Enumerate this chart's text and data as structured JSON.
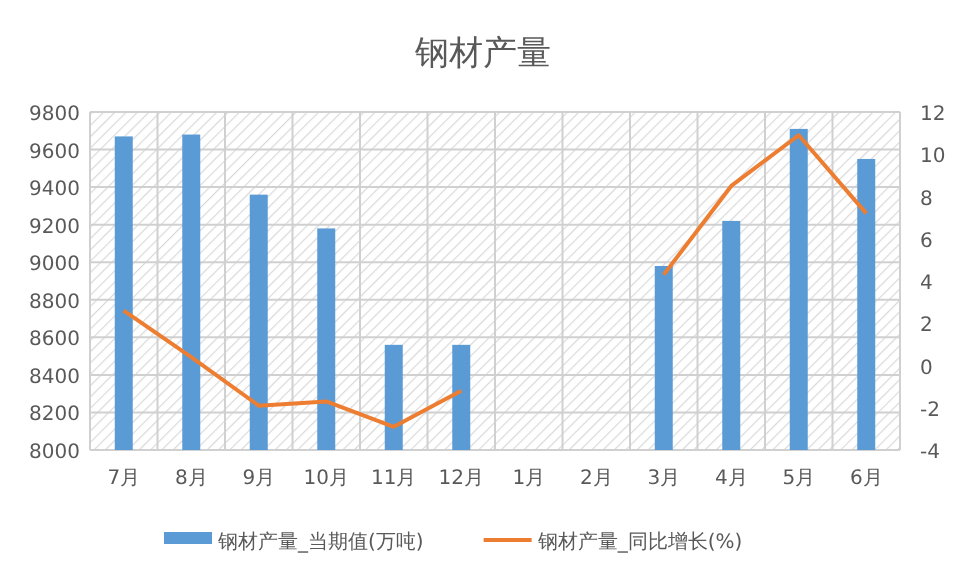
{
  "chart_data": {
    "type": "bar",
    "title": "钢材产量",
    "categories": [
      "7月",
      "8月",
      "9月",
      "10月",
      "11月",
      "12月",
      "1月",
      "2月",
      "3月",
      "4月",
      "5月",
      "6月"
    ],
    "series": [
      {
        "name": "钢材产量_当期值(万吨)",
        "color": "#5b9bd5",
        "values": [
          9670,
          9680,
          9360,
          9180,
          8560,
          8560,
          null,
          null,
          8980,
          9220,
          9710,
          9550
        ]
      },
      {
        "name": "钢材产量_同比增长(%)",
        "color": "#ed7d31",
        "type": "line",
        "axis": "y2",
        "values": [
          2.6,
          0.4,
          -1.9,
          -1.7,
          -2.9,
          -1.2,
          null,
          null,
          4.3,
          8.5,
          10.9,
          7.2
        ]
      }
    ],
    "ylim": [
      8000,
      9800
    ],
    "yticks": [
      8000,
      8200,
      8400,
      8600,
      8800,
      9000,
      9200,
      9400,
      9600,
      9800
    ],
    "y2lim": [
      -4,
      12
    ],
    "y2ticks": [
      -4,
      -2,
      0,
      2,
      4,
      6,
      8,
      10,
      12
    ],
    "grid": true,
    "legend": "bottom",
    "marker": "none",
    "line_style": "solid"
  }
}
